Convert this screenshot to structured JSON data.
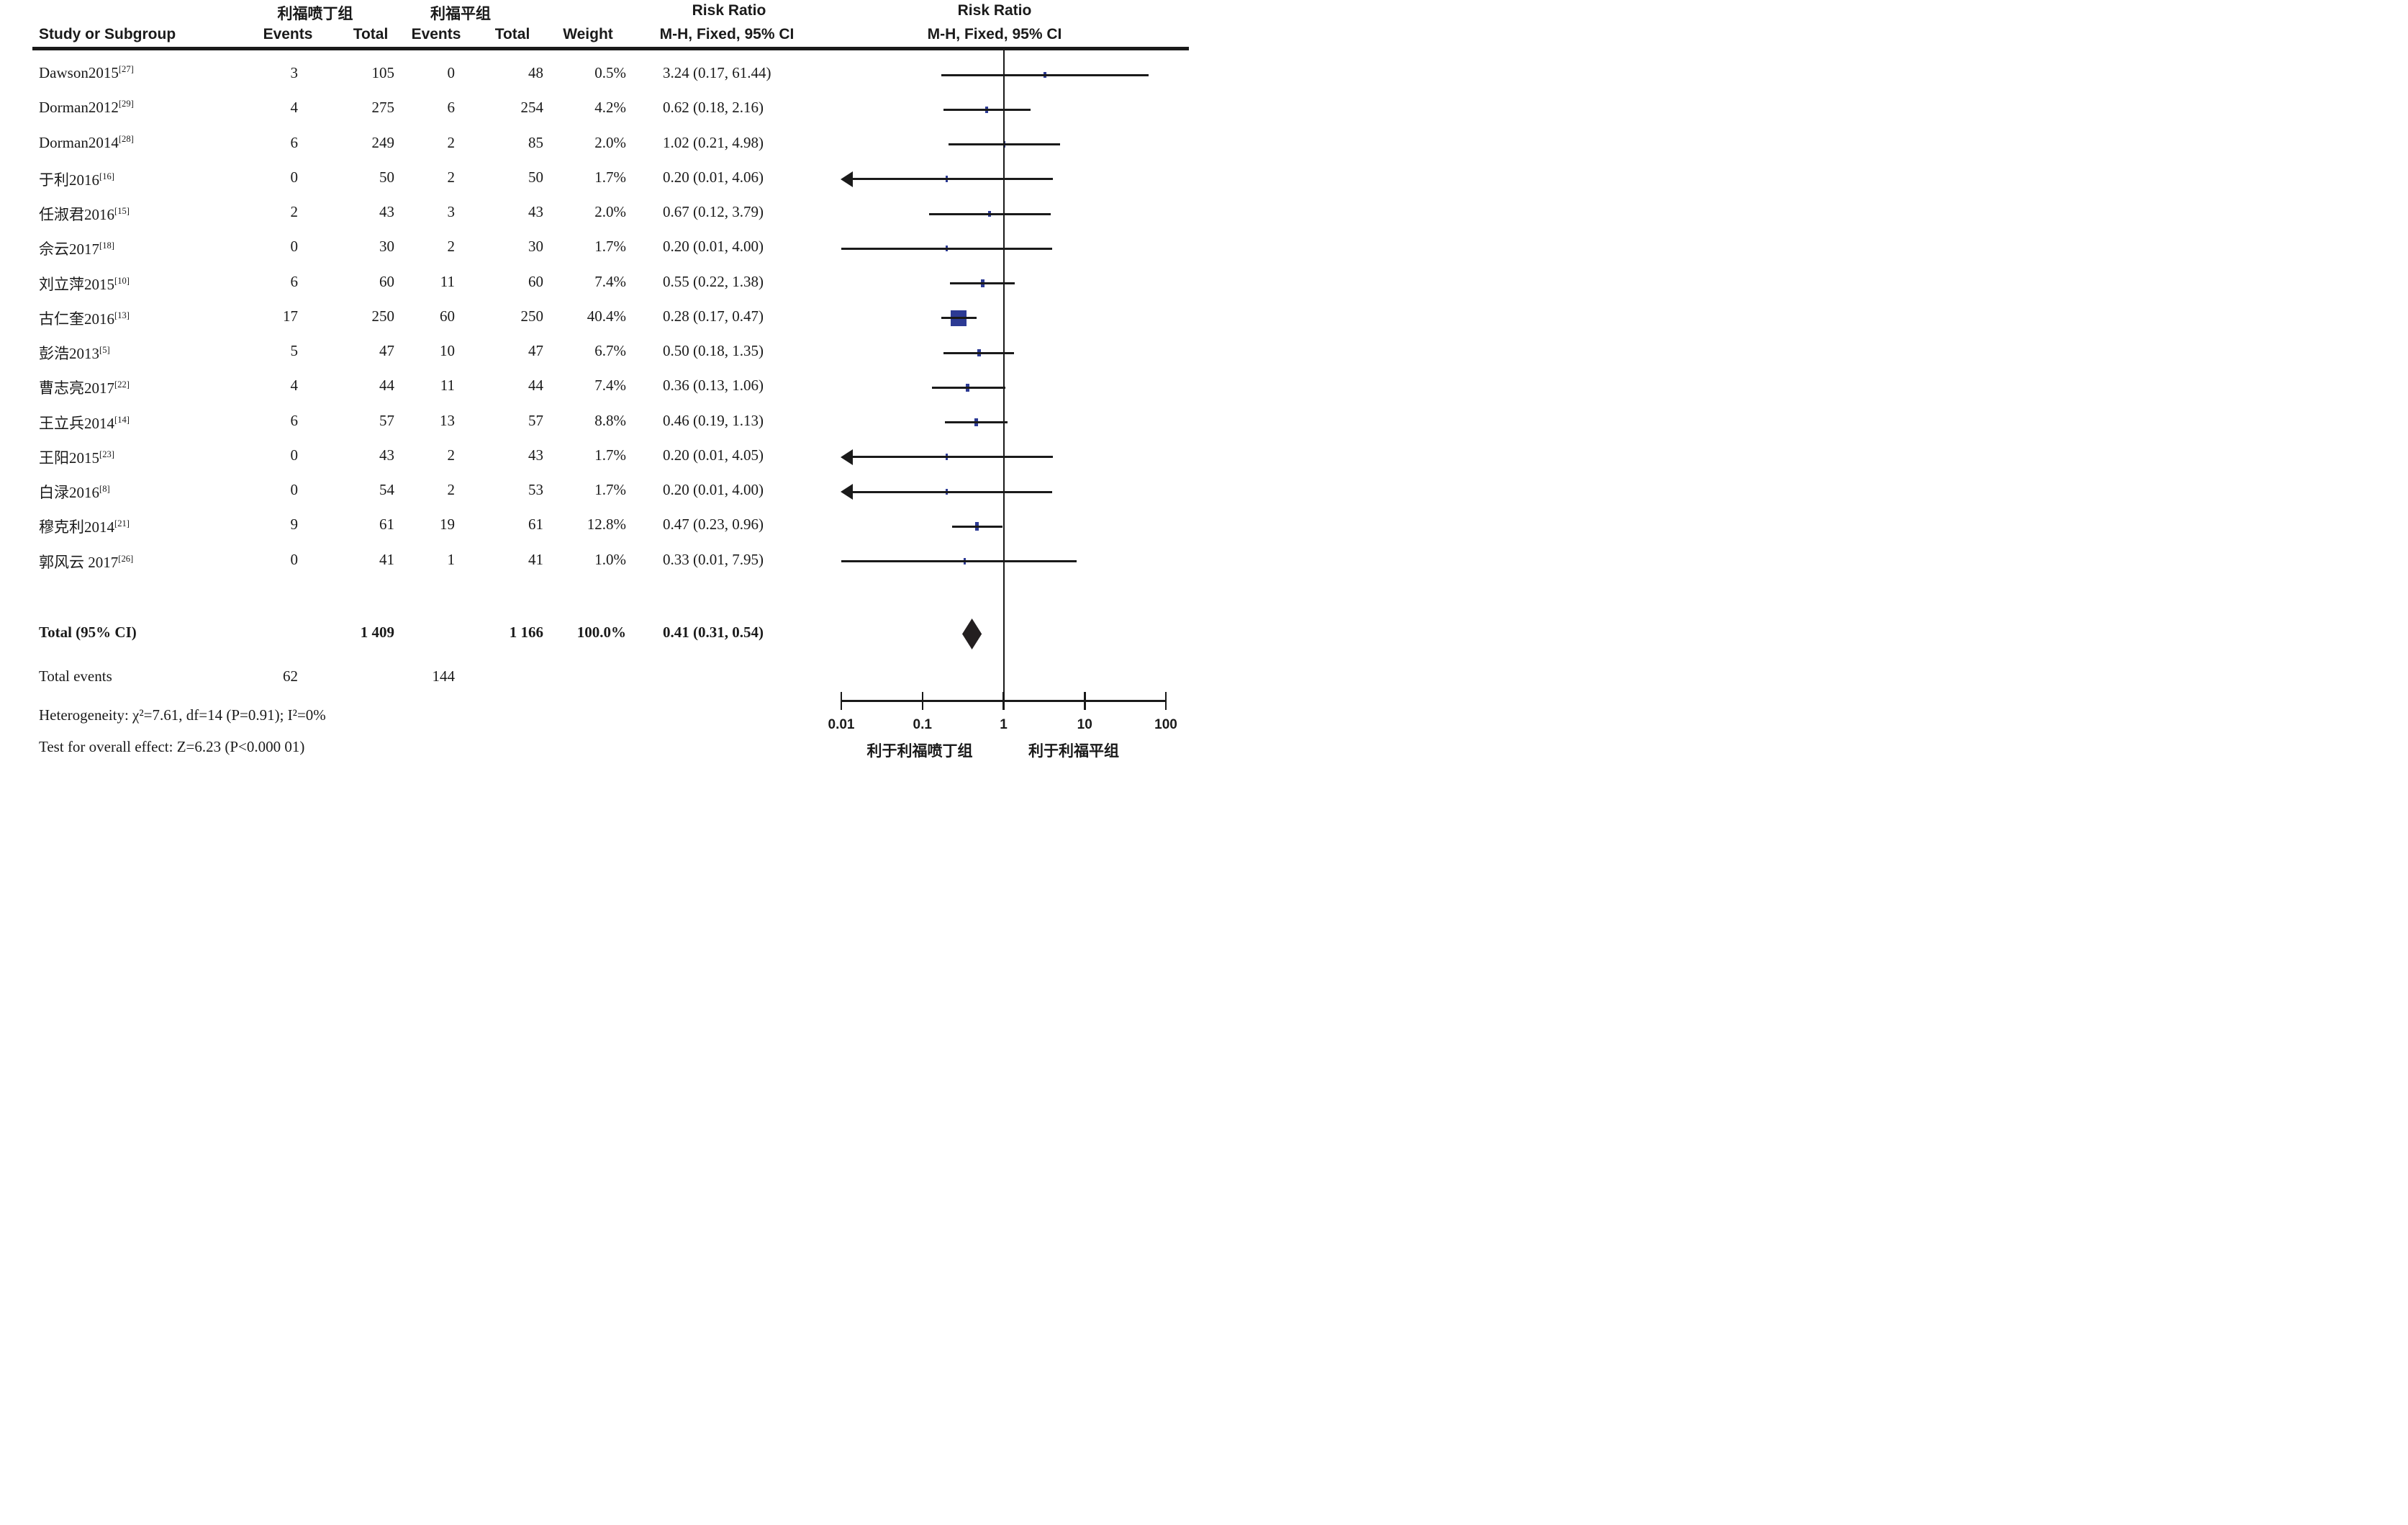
{
  "header": {
    "study_col": "Study or Subgroup",
    "group1_title": "利福喷丁组",
    "group1_events": "Events",
    "group1_total": "Total",
    "group2_title": "利福平组",
    "group2_events": "Events",
    "group2_total": "Total",
    "weight": "Weight",
    "rr_col_line1": "Risk Ratio",
    "rr_col_line2": "M-H, Fixed, 95% CI",
    "plot_col_line1": "Risk Ratio",
    "plot_col_line2": "M-H, Fixed, 95% CI"
  },
  "chart_data": {
    "type": "forest",
    "x_scale": "log10",
    "axis_range": [
      0.01,
      100
    ],
    "axis_ticks": [
      "0.01",
      "0.1",
      "1",
      "10",
      "100"
    ],
    "favours_left": "利于利福喷丁组",
    "favours_right": "利于利福平组",
    "marker_color": "#2c3a94",
    "line_color": "#1a1a1a",
    "studies": [
      {
        "name": "Dawson2015",
        "ref": "[27]",
        "e1": "3",
        "t1": "105",
        "e2": "0",
        "t2": "48",
        "weight": "0.5%",
        "weight_val": 0.5,
        "rr_text": "3.24 (0.17, 61.44)",
        "rr": 3.24,
        "lo": 0.17,
        "hi": 61.44,
        "arrow_left": false
      },
      {
        "name": "Dorman2012",
        "ref": "[29]",
        "e1": "4",
        "t1": "275",
        "e2": "6",
        "t2": "254",
        "weight": "4.2%",
        "weight_val": 4.2,
        "rr_text": "0.62 (0.18, 2.16)",
        "rr": 0.62,
        "lo": 0.18,
        "hi": 2.16,
        "arrow_left": false
      },
      {
        "name": "Dorman2014",
        "ref": "[28]",
        "e1": "6",
        "t1": "249",
        "e2": "2",
        "t2": "85",
        "weight": "2.0%",
        "weight_val": 2.0,
        "rr_text": "1.02 (0.21, 4.98)",
        "rr": 1.02,
        "lo": 0.21,
        "hi": 4.98,
        "arrow_left": false
      },
      {
        "name": "于利2016",
        "ref": "[16]",
        "e1": "0",
        "t1": "50",
        "e2": "2",
        "t2": "50",
        "weight": "1.7%",
        "weight_val": 1.7,
        "rr_text": "0.20 (0.01, 4.06)",
        "rr": 0.2,
        "lo": 0.01,
        "hi": 4.06,
        "arrow_left": true
      },
      {
        "name": "任淑君2016",
        "ref": "[15]",
        "e1": "2",
        "t1": "43",
        "e2": "3",
        "t2": "43",
        "weight": "2.0%",
        "weight_val": 2.0,
        "rr_text": "0.67 (0.12, 3.79)",
        "rr": 0.67,
        "lo": 0.12,
        "hi": 3.79,
        "arrow_left": false
      },
      {
        "name": "佘云2017",
        "ref": "[18]",
        "e1": "0",
        "t1": "30",
        "e2": "2",
        "t2": "30",
        "weight": "1.7%",
        "weight_val": 1.7,
        "rr_text": "0.20 (0.01, 4.00)",
        "rr": 0.2,
        "lo": 0.01,
        "hi": 4.0,
        "arrow_left": false
      },
      {
        "name": "刘立萍2015",
        "ref": "[10]",
        "e1": "6",
        "t1": "60",
        "e2": "11",
        "t2": "60",
        "weight": "7.4%",
        "weight_val": 7.4,
        "rr_text": "0.55 (0.22, 1.38)",
        "rr": 0.55,
        "lo": 0.22,
        "hi": 1.38,
        "arrow_left": false
      },
      {
        "name": "古仁奎2016",
        "ref": "[13]",
        "e1": "17",
        "t1": "250",
        "e2": "60",
        "t2": "250",
        "weight": "40.4%",
        "weight_val": 40.4,
        "rr_text": "0.28 (0.17, 0.47)",
        "rr": 0.28,
        "lo": 0.17,
        "hi": 0.47,
        "arrow_left": false
      },
      {
        "name": "彭浩2013",
        "ref": "[5]",
        "e1": "5",
        "t1": "47",
        "e2": "10",
        "t2": "47",
        "weight": "6.7%",
        "weight_val": 6.7,
        "rr_text": "0.50 (0.18, 1.35)",
        "rr": 0.5,
        "lo": 0.18,
        "hi": 1.35,
        "arrow_left": false
      },
      {
        "name": "曹志亮2017",
        "ref": "[22]",
        "e1": "4",
        "t1": "44",
        "e2": "11",
        "t2": "44",
        "weight": "7.4%",
        "weight_val": 7.4,
        "rr_text": "0.36 (0.13, 1.06)",
        "rr": 0.36,
        "lo": 0.13,
        "hi": 1.06,
        "arrow_left": false
      },
      {
        "name": "王立兵2014",
        "ref": "[14]",
        "e1": "6",
        "t1": "57",
        "e2": "13",
        "t2": "57",
        "weight": "8.8%",
        "weight_val": 8.8,
        "rr_text": "0.46 (0.19, 1.13)",
        "rr": 0.46,
        "lo": 0.19,
        "hi": 1.13,
        "arrow_left": false
      },
      {
        "name": "王阳2015",
        "ref": "[23]",
        "e1": "0",
        "t1": "43",
        "e2": "2",
        "t2": "43",
        "weight": "1.7%",
        "weight_val": 1.7,
        "rr_text": "0.20 (0.01, 4.05)",
        "rr": 0.2,
        "lo": 0.01,
        "hi": 4.05,
        "arrow_left": true
      },
      {
        "name": "白渌2016",
        "ref": "[8]",
        "e1": "0",
        "t1": "54",
        "e2": "2",
        "t2": "53",
        "weight": "1.7%",
        "weight_val": 1.7,
        "rr_text": "0.20 (0.01, 4.00)",
        "rr": 0.2,
        "lo": 0.01,
        "hi": 4.0,
        "arrow_left": true
      },
      {
        "name": "穆克利2014",
        "ref": "[21]",
        "e1": "9",
        "t1": "61",
        "e2": "19",
        "t2": "61",
        "weight": "12.8%",
        "weight_val": 12.8,
        "rr_text": "0.47 (0.23, 0.96)",
        "rr": 0.47,
        "lo": 0.23,
        "hi": 0.96,
        "arrow_left": false
      },
      {
        "name": "郭风云 2017",
        "ref": "[26]",
        "e1": "0",
        "t1": "41",
        "e2": "1",
        "t2": "41",
        "weight": "1.0%",
        "weight_val": 1.0,
        "rr_text": "0.33 (0.01, 7.95)",
        "rr": 0.33,
        "lo": 0.01,
        "hi": 7.95,
        "arrow_left": false
      }
    ],
    "total": {
      "label": "Total (95% CI)",
      "t1": "1 409",
      "t2": "1 166",
      "weight": "100.0%",
      "rr_text": "0.41 (0.31, 0.54)",
      "rr": 0.41,
      "lo": 0.31,
      "hi": 0.54
    },
    "total_events": {
      "label": "Total events",
      "e1": "62",
      "e2": "144"
    },
    "heterogeneity": "Heterogeneity: χ²=7.61, df=14 (P=0.91); I²=0%",
    "overall_effect": "Test for overall effect: Z=6.23 (P<0.000 01)"
  }
}
